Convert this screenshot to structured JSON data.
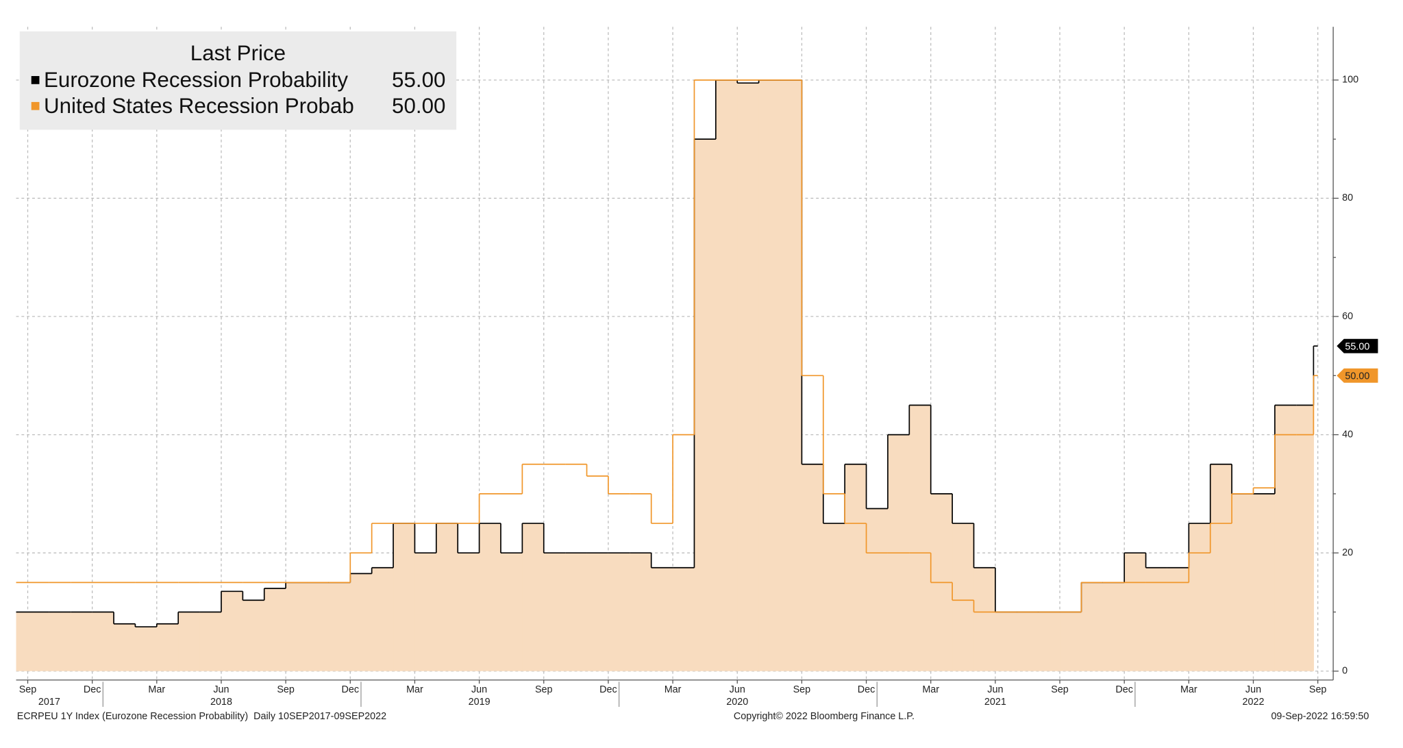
{
  "chart_data": {
    "type": "step-line",
    "legend": {
      "title": "Last Price",
      "position": "upper left"
    },
    "x": [
      "2017-09",
      "2017-10",
      "2017-11",
      "2017-12",
      "2018-01",
      "2018-02",
      "2018-03",
      "2018-04",
      "2018-05",
      "2018-06",
      "2018-07",
      "2018-08",
      "2018-09",
      "2018-10",
      "2018-11",
      "2018-12",
      "2019-01",
      "2019-02",
      "2019-03",
      "2019-04",
      "2019-05",
      "2019-06",
      "2019-07",
      "2019-08",
      "2019-09",
      "2019-10",
      "2019-11",
      "2019-12",
      "2020-01",
      "2020-02",
      "2020-03",
      "2020-04",
      "2020-05",
      "2020-06",
      "2020-07",
      "2020-08",
      "2020-09",
      "2020-10",
      "2020-11",
      "2020-12",
      "2021-01",
      "2021-02",
      "2021-03",
      "2021-04",
      "2021-05",
      "2021-06",
      "2021-07",
      "2021-08",
      "2021-09",
      "2021-10",
      "2021-11",
      "2021-12",
      "2022-01",
      "2022-02",
      "2022-03",
      "2022-04",
      "2022-05",
      "2022-06",
      "2022-07",
      "2022-08",
      "2022-09"
    ],
    "series": [
      {
        "name": "Eurozone Recession Probability",
        "last_label": "55.00",
        "color": "#000000",
        "fill": "#f8dcbf",
        "values": [
          10,
          10,
          10,
          10,
          8,
          7.5,
          8,
          10,
          10,
          13.5,
          12,
          14,
          15,
          15,
          15,
          16.5,
          17.5,
          25,
          20,
          25,
          20,
          25,
          20,
          25,
          20,
          20,
          20,
          20,
          20,
          17.5,
          17.5,
          90,
          100,
          99.5,
          100,
          100,
          35,
          25,
          35,
          27.5,
          40,
          45,
          30,
          25,
          17.5,
          10,
          10,
          10,
          10,
          15,
          15,
          20,
          17.5,
          17.5,
          25,
          35,
          30,
          30,
          45,
          45,
          55
        ]
      },
      {
        "name": "United States Recession Probab",
        "last_label": "50.00",
        "color": "#f0962a",
        "values": [
          15,
          15,
          15,
          15,
          15,
          15,
          15,
          15,
          15,
          15,
          15,
          15,
          15,
          15,
          15,
          20,
          25,
          25,
          25,
          25,
          25,
          30,
          30,
          35,
          35,
          35,
          33,
          30,
          30,
          25,
          40,
          100,
          100,
          100,
          100,
          100,
          50,
          30,
          25,
          20,
          20,
          20,
          15,
          12,
          10,
          10,
          10,
          10,
          10,
          15,
          15,
          15,
          15,
          15,
          20,
          25,
          30,
          31,
          40,
          40,
          50
        ]
      }
    ],
    "ylim": [
      -1.5,
      109
    ],
    "yticks": [
      0,
      20,
      40,
      60,
      80,
      100
    ],
    "grid": true,
    "xticks": [
      {
        "value": "2017-09",
        "label": "Sep"
      },
      {
        "value": "2017-12",
        "label": "Dec"
      },
      {
        "value": "2018-03",
        "label": "Mar"
      },
      {
        "value": "2018-06",
        "label": "Jun"
      },
      {
        "value": "2018-09",
        "label": "Sep"
      },
      {
        "value": "2018-12",
        "label": "Dec"
      },
      {
        "value": "2019-03",
        "label": "Mar"
      },
      {
        "value": "2019-06",
        "label": "Jun"
      },
      {
        "value": "2019-09",
        "label": "Sep"
      },
      {
        "value": "2019-12",
        "label": "Dec"
      },
      {
        "value": "2020-03",
        "label": "Mar"
      },
      {
        "value": "2020-06",
        "label": "Jun"
      },
      {
        "value": "2020-09",
        "label": "Sep"
      },
      {
        "value": "2020-12",
        "label": "Dec"
      },
      {
        "value": "2021-03",
        "label": "Mar"
      },
      {
        "value": "2021-06",
        "label": "Jun"
      },
      {
        "value": "2021-09",
        "label": "Sep"
      },
      {
        "value": "2021-12",
        "label": "Dec"
      },
      {
        "value": "2022-03",
        "label": "Mar"
      },
      {
        "value": "2022-06",
        "label": "Jun"
      },
      {
        "value": "2022-09",
        "label": "Sep"
      }
    ],
    "year_ticks": [
      {
        "value": "2017-10",
        "label": "2017"
      },
      {
        "value": "2018-06",
        "label": "2018"
      },
      {
        "value": "2019-06",
        "label": "2019"
      },
      {
        "value": "2020-06",
        "label": "2020"
      },
      {
        "value": "2021-06",
        "label": "2021"
      },
      {
        "value": "2022-06",
        "label": "2022"
      }
    ],
    "footer": {
      "left": "ECRPEU 1Y Index (Eurozone Recession Probability)  Daily 10SEP2017-09SEP2022",
      "center": "Copyright© 2022 Bloomberg Finance L.P.",
      "right": "09-Sep-2022 16:59:50"
    }
  }
}
